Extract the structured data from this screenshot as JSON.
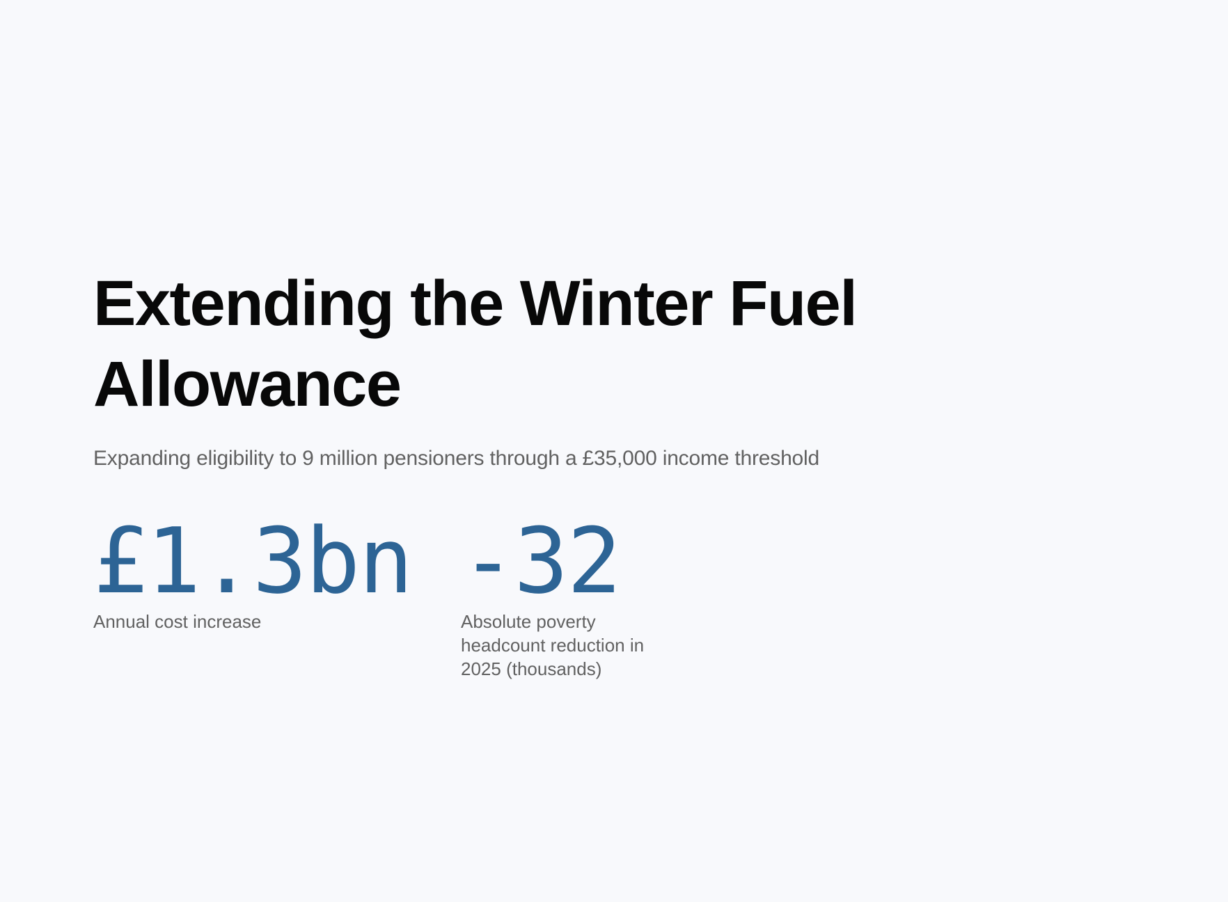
{
  "header": {
    "title": "Extending the Winter Fuel Allowance",
    "subtitle": "Expanding eligibility to 9 million pensioners through a £35,000 income threshold"
  },
  "stats": [
    {
      "value": "£1.3bn",
      "label": "Annual cost increase"
    },
    {
      "value": "-32",
      "label": "Absolute poverty headcount reduction in 2025 (thousands)"
    }
  ],
  "colors": {
    "background": "#f8f9fc",
    "title": "#080808",
    "subtitle": "#616161",
    "accent": "#2d6495"
  }
}
